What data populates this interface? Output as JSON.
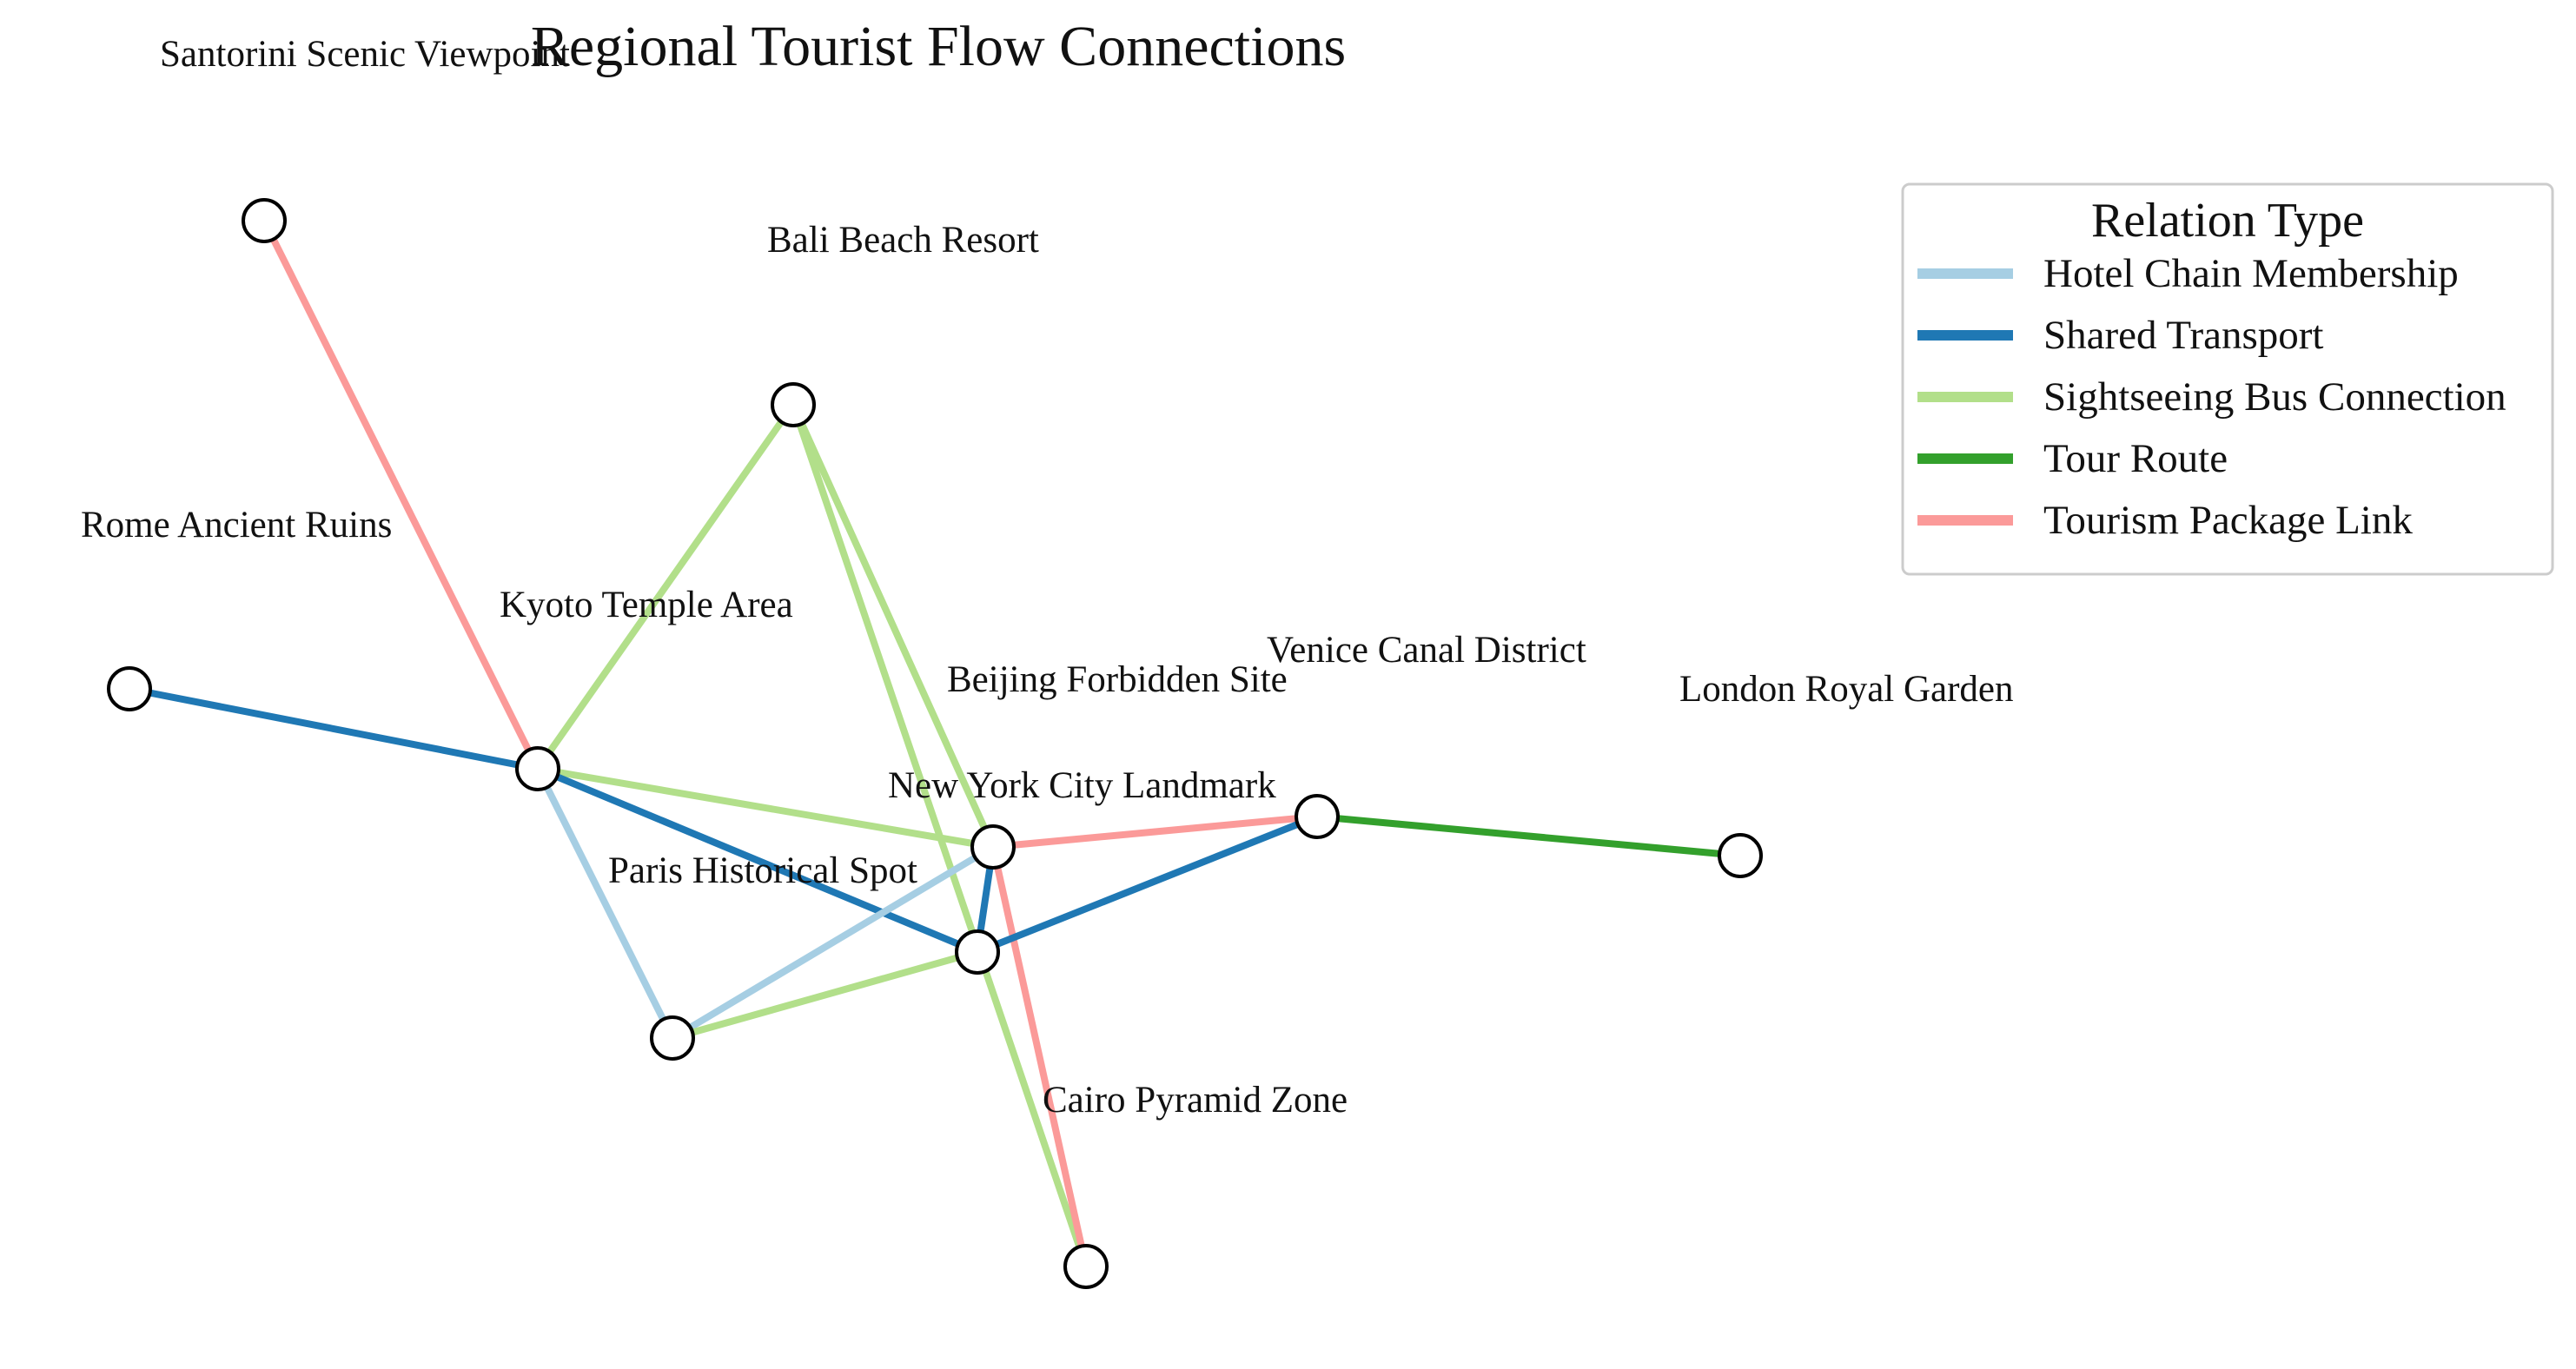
{
  "title": "Regional Tourist Flow Connections",
  "legend": {
    "title": "Relation Type",
    "items": [
      {
        "key": "hotel",
        "label": "Hotel Chain Membership",
        "color": "#a6cee3"
      },
      {
        "key": "transport",
        "label": "Shared Transport",
        "color": "#1f78b4"
      },
      {
        "key": "bus",
        "label": "Sightseeing Bus Connection",
        "color": "#b2df8a"
      },
      {
        "key": "tour",
        "label": "Tour Route",
        "color": "#33a02c"
      },
      {
        "key": "package",
        "label": "Tourism Package Link",
        "color": "#fb9a99"
      }
    ]
  },
  "nodes": [
    {
      "id": "santorini",
      "label": "Santorini Scenic Viewpoint"
    },
    {
      "id": "bali",
      "label": "Bali Beach Resort"
    },
    {
      "id": "rome",
      "label": "Rome Ancient Ruins"
    },
    {
      "id": "kyoto",
      "label": "Kyoto Temple Area"
    },
    {
      "id": "paris",
      "label": "Paris Historical Spot"
    },
    {
      "id": "venice",
      "label": "Venice Canal District"
    },
    {
      "id": "london",
      "label": "London Royal Garden"
    },
    {
      "id": "newyork",
      "label": "New York City Landmark"
    },
    {
      "id": "beijing",
      "label": "Beijing Forbidden Site"
    },
    {
      "id": "cairo",
      "label": "Cairo Pyramid Zone"
    }
  ],
  "edges": [
    {
      "source": "santorini",
      "target": "kyoto",
      "type": "package"
    },
    {
      "source": "rome",
      "target": "kyoto",
      "type": "transport"
    },
    {
      "source": "bali",
      "target": "kyoto",
      "type": "bus"
    },
    {
      "source": "bali",
      "target": "newyork",
      "type": "bus"
    },
    {
      "source": "bali",
      "target": "cairo",
      "type": "bus"
    },
    {
      "source": "kyoto",
      "target": "newyork",
      "type": "bus"
    },
    {
      "source": "kyoto",
      "target": "beijing",
      "type": "transport"
    },
    {
      "source": "kyoto",
      "target": "paris",
      "type": "hotel"
    },
    {
      "source": "paris",
      "target": "newyork",
      "type": "hotel"
    },
    {
      "source": "paris",
      "target": "beijing",
      "type": "bus"
    },
    {
      "source": "newyork",
      "target": "beijing",
      "type": "transport"
    },
    {
      "source": "newyork",
      "target": "venice",
      "type": "package"
    },
    {
      "source": "newyork",
      "target": "cairo",
      "type": "package"
    },
    {
      "source": "beijing",
      "target": "venice",
      "type": "transport"
    },
    {
      "source": "venice",
      "target": "london",
      "type": "tour"
    }
  ]
}
